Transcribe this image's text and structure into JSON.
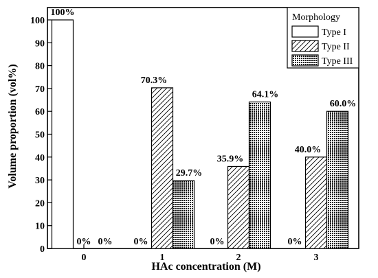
{
  "chart_data": {
    "type": "bar",
    "title": "",
    "xlabel": "HAc concentration (M)",
    "ylabel": "Volume proportion (vol%)",
    "categories": [
      "0",
      "1",
      "2",
      "3"
    ],
    "ylim": [
      0,
      100
    ],
    "yticks": [
      0,
      10,
      20,
      30,
      40,
      50,
      60,
      70,
      80,
      90,
      100
    ],
    "grid": false,
    "legend": {
      "title": "Morphology",
      "placement": "top-right"
    },
    "series": [
      {
        "name": "Type I",
        "pattern": "blank",
        "values": [
          100,
          0,
          0,
          0
        ],
        "labels": [
          "100%",
          "0%",
          "0%",
          "0%"
        ]
      },
      {
        "name": "Type II",
        "pattern": "hatch",
        "values": [
          0,
          70.3,
          35.9,
          40.0
        ],
        "labels": [
          "0%",
          "70.3%",
          "35.9%",
          "40.0%"
        ]
      },
      {
        "name": "Type III",
        "pattern": "crosshatch",
        "values": [
          0,
          29.7,
          64.1,
          60.0
        ],
        "labels": [
          "0%",
          "29.7%",
          "64.1%",
          "60.0%"
        ]
      }
    ]
  }
}
